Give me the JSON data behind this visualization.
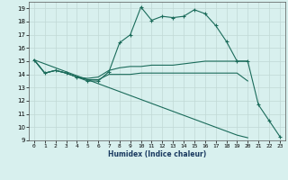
{
  "title": "",
  "xlabel": "Humidex (Indice chaleur)",
  "xlim": [
    -0.5,
    23.5
  ],
  "ylim": [
    9,
    19.5
  ],
  "yticks": [
    9,
    10,
    11,
    12,
    13,
    14,
    15,
    16,
    17,
    18,
    19
  ],
  "xticks": [
    0,
    1,
    2,
    3,
    4,
    5,
    6,
    7,
    8,
    9,
    10,
    11,
    12,
    13,
    14,
    15,
    16,
    17,
    18,
    19,
    20,
    21,
    22,
    23
  ],
  "bg_color": "#d8f0ee",
  "grid_color": "#c0d8d5",
  "line_color": "#1a6b5a",
  "lines": [
    {
      "x": [
        0,
        1,
        2,
        3,
        4,
        5,
        6,
        7,
        8,
        9,
        10,
        11,
        12,
        13,
        14,
        15,
        16,
        17,
        18,
        19,
        20,
        21,
        22,
        23
      ],
      "y": [
        15.1,
        14.1,
        14.3,
        14.1,
        13.8,
        13.5,
        13.5,
        14.2,
        16.4,
        17.0,
        19.1,
        18.1,
        18.4,
        18.3,
        18.4,
        18.9,
        18.6,
        17.7,
        16.5,
        15.0,
        15.0,
        11.7,
        10.5,
        9.3
      ],
      "marker": "+"
    },
    {
      "x": [
        0,
        1,
        2,
        3,
        4,
        5,
        6,
        7,
        8,
        9,
        10,
        11,
        12,
        13,
        14,
        15,
        16,
        17,
        18,
        19,
        20
      ],
      "y": [
        15.1,
        14.1,
        14.3,
        14.1,
        13.8,
        13.7,
        13.8,
        14.3,
        14.5,
        14.6,
        14.6,
        14.7,
        14.7,
        14.7,
        14.8,
        14.9,
        15.0,
        15.0,
        15.0,
        15.0,
        15.0
      ],
      "marker": null
    },
    {
      "x": [
        0,
        1,
        2,
        3,
        4,
        5,
        6,
        7,
        8,
        9,
        10,
        11,
        12,
        13,
        14,
        15,
        16,
        17,
        18,
        19,
        20
      ],
      "y": [
        15.1,
        14.1,
        14.3,
        14.1,
        13.8,
        13.6,
        13.6,
        14.0,
        14.0,
        14.0,
        14.1,
        14.1,
        14.1,
        14.1,
        14.1,
        14.1,
        14.1,
        14.1,
        14.1,
        14.1,
        13.5
      ],
      "marker": null
    },
    {
      "x": [
        0,
        1,
        2,
        3,
        4,
        5,
        6,
        7,
        8,
        9,
        10,
        11,
        12,
        13,
        14,
        15,
        16,
        17,
        18,
        19,
        20
      ],
      "y": [
        15.1,
        14.8,
        14.5,
        14.2,
        13.9,
        13.6,
        13.3,
        13.0,
        12.7,
        12.4,
        12.1,
        11.8,
        11.5,
        11.2,
        10.9,
        10.6,
        10.3,
        10.0,
        9.7,
        9.4,
        9.2
      ],
      "marker": null
    }
  ]
}
